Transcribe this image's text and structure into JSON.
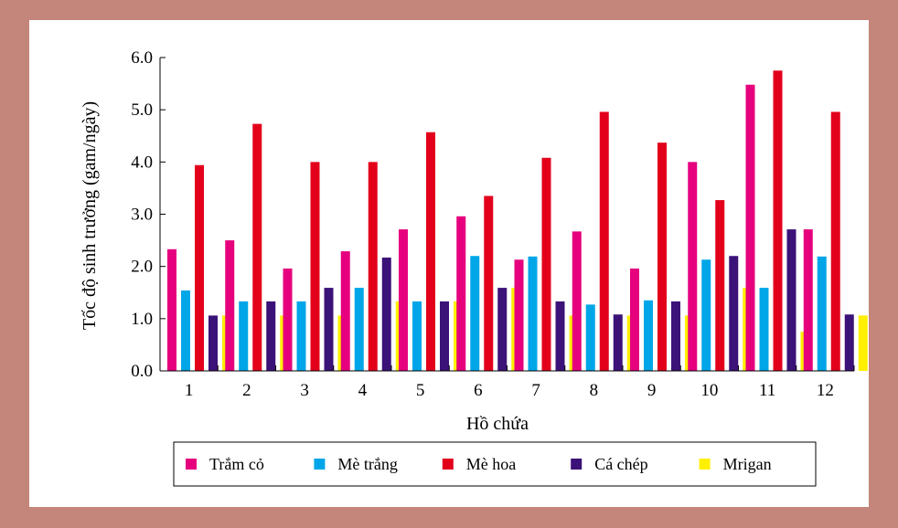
{
  "chart_data": {
    "type": "bar",
    "title": "",
    "xlabel": "Hồ chứa",
    "ylabel": "Tốc độ sinh trưởng (gam/ngày)",
    "ylim": [
      0,
      6
    ],
    "yticks": [
      "0.0",
      "1.0",
      "2.0",
      "3.0",
      "4.0",
      "5.0",
      "6.0"
    ],
    "categories": [
      "1",
      "2",
      "3",
      "4",
      "5",
      "6",
      "7",
      "8",
      "9",
      "10",
      "11",
      "12"
    ],
    "legend_position": "bottom",
    "grid": false,
    "series": [
      {
        "name": "Trắm cỏ",
        "color": "#e6007e",
        "values": [
          2.33,
          2.5,
          1.96,
          2.29,
          2.71,
          2.96,
          2.13,
          2.67,
          1.96,
          4.0,
          5.48,
          2.71
        ]
      },
      {
        "name": "Mè trắng",
        "color": "#00a6e8",
        "values": [
          1.54,
          1.33,
          1.33,
          1.59,
          1.33,
          2.2,
          2.19,
          1.27,
          1.35,
          2.13,
          1.59,
          2.19
        ]
      },
      {
        "name": "Mè hoa",
        "color": "#e3001b",
        "values": [
          3.94,
          4.73,
          4.0,
          4.0,
          4.57,
          3.35,
          4.08,
          4.96,
          4.37,
          3.27,
          5.75,
          4.96
        ]
      },
      {
        "name": "Cá chép",
        "color": "#3b1278",
        "values": [
          1.06,
          1.33,
          1.59,
          2.17,
          1.33,
          1.59,
          1.33,
          1.08,
          1.33,
          2.2,
          2.71,
          1.08
        ]
      },
      {
        "name": "Mrigan",
        "color": "#ffef00",
        "values": [
          1.06,
          1.06,
          1.06,
          1.33,
          1.33,
          1.59,
          1.06,
          1.06,
          1.06,
          1.59,
          0.75,
          1.06
        ]
      }
    ]
  }
}
